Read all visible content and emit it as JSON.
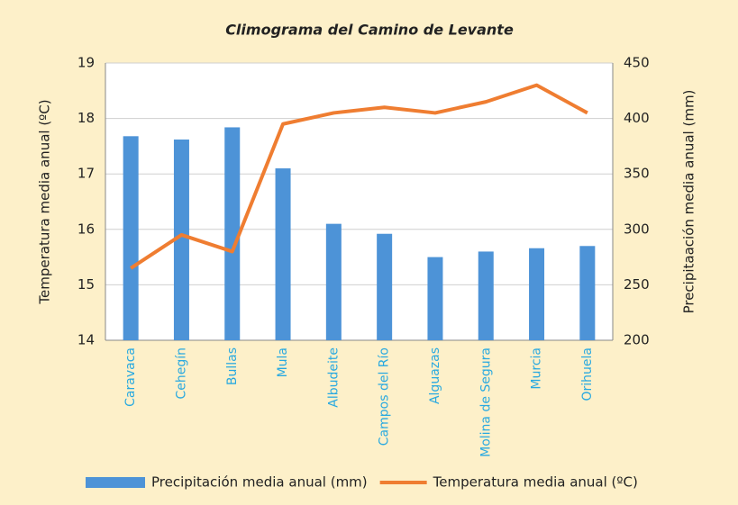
{
  "chart_data": {
    "type": "bar",
    "title": "Climograma del Camino de Levante",
    "y_label": "Temperatura media anual (ºC)",
    "y2_label": "Precipitaación media anual (mm)",
    "categories": [
      "Caravaca",
      "Cehegín",
      "Bullas",
      "Mula",
      "Albudeite",
      "Campos del Río",
      "Alguazas",
      "Molina de Segura",
      "Murcia",
      "Orihuela"
    ],
    "series": [
      {
        "name": "Precipitación media anual (mm)",
        "type": "bar",
        "axis": "y2",
        "color": "#4d93d7",
        "values": [
          384,
          381,
          392,
          355,
          305,
          296,
          275,
          280,
          283,
          285
        ]
      },
      {
        "name": "Temperatura media anual (ºC)",
        "type": "line",
        "axis": "y",
        "color": "#ef7d31",
        "values": [
          15.3,
          15.9,
          15.6,
          17.9,
          18.1,
          18.2,
          18.1,
          18.3,
          18.6,
          18.1
        ]
      }
    ],
    "ylim": [
      14,
      19
    ],
    "yticks": [
      14,
      15,
      16,
      17,
      18,
      19
    ],
    "y2lim": [
      200,
      450
    ],
    "y2ticks": [
      200,
      250,
      300,
      350,
      400,
      450
    ],
    "grid": true,
    "legend": "bottom"
  }
}
